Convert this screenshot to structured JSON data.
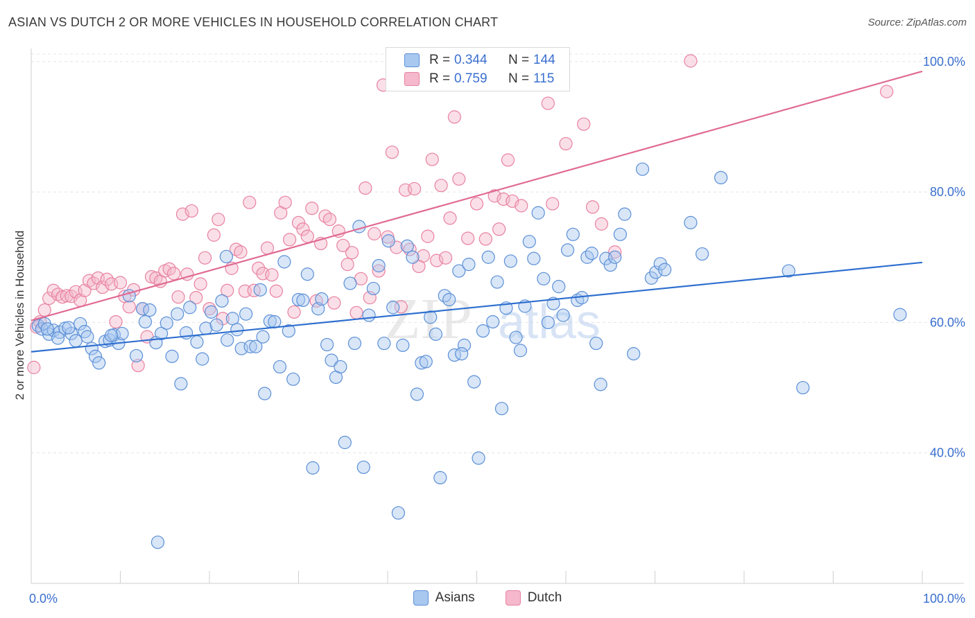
{
  "header": {
    "title": "ASIAN VS DUTCH 2 OR MORE VEHICLES IN HOUSEHOLD CORRELATION CHART",
    "source": "Source: ZipAtlas.com"
  },
  "watermark": {
    "zip": "ZIP",
    "atlas": "atlas"
  },
  "legend": {
    "rows": [
      {
        "r_label": "R =",
        "r_value": "0.344",
        "n_label": "N =",
        "n_value": "144",
        "color": "#a8c8f0"
      },
      {
        "r_label": "R =",
        "r_value": "0.759",
        "n_label": "N =",
        "n_value": "115",
        "color": "#f5b8cc"
      }
    ]
  },
  "bottom_legend": [
    {
      "label": "Asians",
      "color": "#a8c8f0"
    },
    {
      "label": "Dutch",
      "color": "#f5b8cc"
    }
  ],
  "colors": {
    "asian_fill": "#a8c8f0",
    "asian_stroke": "#5b8fd6",
    "asian_line": "#2e6fcf",
    "dutch_fill": "#f5b8cc",
    "dutch_stroke": "#e8819f",
    "dutch_line": "#e06a92",
    "tick_label": "#3a6fcf",
    "grid": "#e4e4e4"
  },
  "chart_data": {
    "type": "scatter",
    "title": "ASIAN VS DUTCH 2 OR MORE VEHICLES IN HOUSEHOLD CORRELATION CHART",
    "xlabel": "",
    "ylabel": "2 or more Vehicles in Household",
    "xlim": [
      0,
      100
    ],
    "ylim": [
      20,
      102
    ],
    "x_tick_labels": [
      "0.0%",
      "100.0%"
    ],
    "y_ticks": [
      40,
      60,
      80,
      100
    ],
    "y_tick_labels": [
      "40.0%",
      "60.0%",
      "80.0%",
      "100.0%"
    ],
    "grid": true,
    "legend_position": "top-center",
    "series": [
      {
        "name": "Asians",
        "r": 0.344,
        "n": 144,
        "trend": {
          "x": [
            0,
            100
          ],
          "y": [
            55.5,
            69.2
          ]
        },
        "points": [
          [
            0.8,
            59.5
          ],
          [
            1.2,
            59.0
          ],
          [
            1.5,
            59.8
          ],
          [
            2.0,
            58.2
          ],
          [
            2.5,
            58.8
          ],
          [
            3.2,
            58.5
          ],
          [
            3.8,
            59.1
          ],
          [
            4.5,
            58.3
          ],
          [
            5.0,
            57.2
          ],
          [
            5.5,
            59.8
          ],
          [
            6.0,
            58.6
          ],
          [
            6.3,
            57.8
          ],
          [
            6.8,
            56.0
          ],
          [
            7.2,
            54.8
          ],
          [
            7.6,
            53.8
          ],
          [
            8.3,
            57.1
          ],
          [
            8.8,
            57.3
          ],
          [
            9.3,
            58.1
          ],
          [
            9.8,
            56.8
          ],
          [
            10.2,
            58.3
          ],
          [
            11.0,
            64.1
          ],
          [
            11.8,
            54.9
          ],
          [
            12.5,
            62.1
          ],
          [
            12.8,
            60.1
          ],
          [
            13.3,
            61.9
          ],
          [
            14.0,
            56.9
          ],
          [
            14.6,
            58.3
          ],
          [
            15.2,
            59.9
          ],
          [
            15.8,
            54.8
          ],
          [
            16.4,
            61.3
          ],
          [
            16.8,
            50.6
          ],
          [
            17.4,
            58.4
          ],
          [
            17.8,
            62.3
          ],
          [
            18.6,
            57.0
          ],
          [
            19.2,
            54.4
          ],
          [
            19.6,
            59.1
          ],
          [
            20.2,
            61.6
          ],
          [
            20.8,
            59.6
          ],
          [
            21.4,
            63.3
          ],
          [
            21.9,
            70.1
          ],
          [
            22.6,
            60.6
          ],
          [
            23.1,
            58.9
          ],
          [
            23.6,
            56.0
          ],
          [
            24.1,
            61.3
          ],
          [
            24.6,
            56.3
          ],
          [
            25.2,
            56.3
          ],
          [
            25.7,
            65.0
          ],
          [
            26.2,
            49.1
          ],
          [
            26.8,
            60.2
          ],
          [
            27.3,
            60.1
          ],
          [
            27.9,
            53.2
          ],
          [
            28.4,
            69.3
          ],
          [
            28.9,
            58.7
          ],
          [
            29.4,
            51.3
          ],
          [
            30.0,
            63.5
          ],
          [
            30.5,
            63.4
          ],
          [
            31.0,
            67.4
          ],
          [
            31.6,
            37.7
          ],
          [
            32.2,
            62.1
          ],
          [
            32.6,
            63.6
          ],
          [
            33.2,
            56.6
          ],
          [
            33.7,
            54.2
          ],
          [
            34.2,
            51.6
          ],
          [
            34.7,
            53.2
          ],
          [
            35.2,
            41.6
          ],
          [
            35.8,
            66.0
          ],
          [
            36.3,
            56.8
          ],
          [
            36.8,
            74.7
          ],
          [
            37.3,
            37.8
          ],
          [
            37.9,
            61.1
          ],
          [
            38.4,
            65.2
          ],
          [
            39.0,
            68.7
          ],
          [
            39.6,
            56.8
          ],
          [
            40.1,
            72.5
          ],
          [
            40.6,
            62.3
          ],
          [
            41.2,
            30.8
          ],
          [
            41.7,
            56.5
          ],
          [
            42.2,
            71.7
          ],
          [
            42.8,
            70.0
          ],
          [
            43.3,
            49.0
          ],
          [
            43.8,
            53.8
          ],
          [
            44.3,
            54.0
          ],
          [
            44.8,
            60.8
          ],
          [
            45.4,
            58.2
          ],
          [
            45.9,
            36.2
          ],
          [
            46.4,
            64.1
          ],
          [
            46.9,
            63.5
          ],
          [
            47.5,
            55.0
          ],
          [
            48.0,
            67.9
          ],
          [
            48.6,
            56.5
          ],
          [
            49.1,
            68.9
          ],
          [
            49.7,
            50.9
          ],
          [
            50.2,
            39.2
          ],
          [
            50.7,
            58.7
          ],
          [
            51.3,
            70.0
          ],
          [
            51.8,
            60.1
          ],
          [
            52.3,
            66.2
          ],
          [
            52.8,
            46.8
          ],
          [
            53.3,
            62.2
          ],
          [
            53.8,
            69.4
          ],
          [
            54.4,
            57.7
          ],
          [
            54.9,
            55.7
          ],
          [
            55.4,
            62.5
          ],
          [
            55.9,
            72.4
          ],
          [
            56.4,
            69.8
          ],
          [
            56.9,
            76.8
          ],
          [
            57.5,
            66.7
          ],
          [
            58.0,
            60.0
          ],
          [
            58.6,
            62.9
          ],
          [
            59.2,
            65.5
          ],
          [
            59.7,
            61.1
          ],
          [
            60.2,
            71.1
          ],
          [
            60.8,
            73.5
          ],
          [
            61.3,
            63.4
          ],
          [
            61.8,
            63.8
          ],
          [
            62.4,
            70.0
          ],
          [
            62.9,
            70.6
          ],
          [
            63.4,
            56.8
          ],
          [
            63.9,
            50.5
          ],
          [
            64.5,
            69.8
          ],
          [
            65.0,
            68.8
          ],
          [
            65.5,
            70.0
          ],
          [
            66.1,
            73.5
          ],
          [
            66.6,
            76.6
          ],
          [
            67.6,
            55.2
          ],
          [
            68.6,
            83.5
          ],
          [
            69.6,
            66.8
          ],
          [
            70.1,
            67.7
          ],
          [
            70.6,
            69.0
          ],
          [
            71.1,
            68.1
          ],
          [
            74.0,
            75.3
          ],
          [
            75.3,
            70.5
          ],
          [
            77.4,
            82.2
          ],
          [
            85.0,
            67.9
          ],
          [
            86.6,
            50.0
          ],
          [
            97.5,
            61.2
          ],
          [
            1.8,
            59.0
          ],
          [
            3.0,
            57.6
          ],
          [
            4.2,
            59.2
          ],
          [
            9.0,
            58.0
          ],
          [
            14.2,
            26.3
          ],
          [
            22.0,
            57.3
          ],
          [
            26.0,
            57.8
          ],
          [
            48.3,
            55.2
          ]
        ]
      },
      {
        "name": "Dutch",
        "r": 0.759,
        "n": 115,
        "trend": {
          "x": [
            0,
            100
          ],
          "y": [
            60.3,
            98.5
          ]
        },
        "points": [
          [
            0.3,
            53.1
          ],
          [
            0.6,
            59.3
          ],
          [
            1.0,
            60.1
          ],
          [
            1.5,
            61.9
          ],
          [
            2.0,
            63.7
          ],
          [
            2.5,
            64.9
          ],
          [
            3.0,
            64.3
          ],
          [
            3.5,
            63.9
          ],
          [
            4.0,
            64.1
          ],
          [
            4.5,
            64.0
          ],
          [
            5.0,
            64.7
          ],
          [
            5.5,
            63.4
          ],
          [
            6.0,
            64.9
          ],
          [
            6.5,
            66.4
          ],
          [
            7.0,
            66.0
          ],
          [
            7.5,
            66.8
          ],
          [
            8.0,
            65.4
          ],
          [
            8.5,
            66.6
          ],
          [
            9.0,
            65.9
          ],
          [
            9.5,
            60.1
          ],
          [
            10.0,
            66.1
          ],
          [
            10.5,
            64.0
          ],
          [
            11.0,
            62.4
          ],
          [
            11.5,
            65.0
          ],
          [
            12.0,
            53.4
          ],
          [
            12.5,
            62.1
          ],
          [
            13.0,
            57.8
          ],
          [
            13.5,
            67.0
          ],
          [
            14.0,
            66.8
          ],
          [
            14.5,
            66.3
          ],
          [
            15.0,
            67.9
          ],
          [
            15.5,
            68.2
          ],
          [
            16.0,
            67.5
          ],
          [
            16.5,
            63.9
          ],
          [
            17.0,
            76.6
          ],
          [
            17.5,
            67.4
          ],
          [
            18.0,
            77.1
          ],
          [
            18.5,
            63.8
          ],
          [
            19.0,
            65.9
          ],
          [
            19.5,
            69.9
          ],
          [
            20.0,
            62.1
          ],
          [
            20.5,
            73.4
          ],
          [
            21.0,
            75.8
          ],
          [
            21.5,
            60.6
          ],
          [
            22.0,
            64.9
          ],
          [
            22.5,
            68.3
          ],
          [
            23.0,
            71.2
          ],
          [
            23.5,
            70.8
          ],
          [
            24.0,
            64.8
          ],
          [
            24.5,
            78.4
          ],
          [
            25.0,
            64.9
          ],
          [
            25.5,
            68.3
          ],
          [
            26.0,
            67.5
          ],
          [
            26.5,
            71.4
          ],
          [
            27.0,
            67.3
          ],
          [
            27.5,
            64.8
          ],
          [
            28.0,
            76.8
          ],
          [
            28.5,
            78.4
          ],
          [
            29.0,
            72.7
          ],
          [
            29.5,
            61.6
          ],
          [
            30.0,
            75.3
          ],
          [
            30.5,
            74.3
          ],
          [
            31.0,
            73.2
          ],
          [
            31.5,
            77.5
          ],
          [
            32.0,
            63.3
          ],
          [
            32.5,
            72.1
          ],
          [
            33.0,
            76.3
          ],
          [
            33.5,
            75.8
          ],
          [
            34.0,
            63.0
          ],
          [
            34.5,
            74.0
          ],
          [
            35.0,
            71.8
          ],
          [
            35.5,
            68.9
          ],
          [
            36.0,
            70.7
          ],
          [
            36.5,
            61.5
          ],
          [
            37.0,
            66.7
          ],
          [
            37.5,
            80.6
          ],
          [
            38.0,
            63.8
          ],
          [
            38.5,
            73.6
          ],
          [
            39.0,
            67.9
          ],
          [
            39.5,
            96.4
          ],
          [
            40.0,
            73.1
          ],
          [
            40.5,
            86.1
          ],
          [
            41.0,
            71.5
          ],
          [
            41.5,
            62.4
          ],
          [
            42.0,
            80.3
          ],
          [
            42.5,
            71.2
          ],
          [
            43.0,
            80.5
          ],
          [
            43.5,
            68.6
          ],
          [
            44.0,
            70.2
          ],
          [
            44.5,
            73.2
          ],
          [
            45.0,
            85.0
          ],
          [
            45.5,
            69.5
          ],
          [
            46.0,
            81.0
          ],
          [
            46.5,
            69.9
          ],
          [
            47.0,
            76.0
          ],
          [
            47.5,
            91.5
          ],
          [
            48.0,
            82.0
          ],
          [
            49.0,
            72.9
          ],
          [
            50.0,
            78.2
          ],
          [
            51.0,
            72.8
          ],
          [
            52.0,
            79.4
          ],
          [
            52.5,
            74.3
          ],
          [
            53.0,
            78.9
          ],
          [
            53.5,
            84.9
          ],
          [
            54.0,
            78.6
          ],
          [
            55.0,
            77.9
          ],
          [
            58.0,
            93.6
          ],
          [
            58.5,
            78.2
          ],
          [
            60.0,
            87.4
          ],
          [
            62.0,
            90.4
          ],
          [
            63.0,
            77.7
          ],
          [
            64.0,
            75.1
          ],
          [
            65.5,
            70.8
          ],
          [
            74.0,
            100.1
          ],
          [
            96.0,
            95.4
          ]
        ]
      }
    ]
  }
}
